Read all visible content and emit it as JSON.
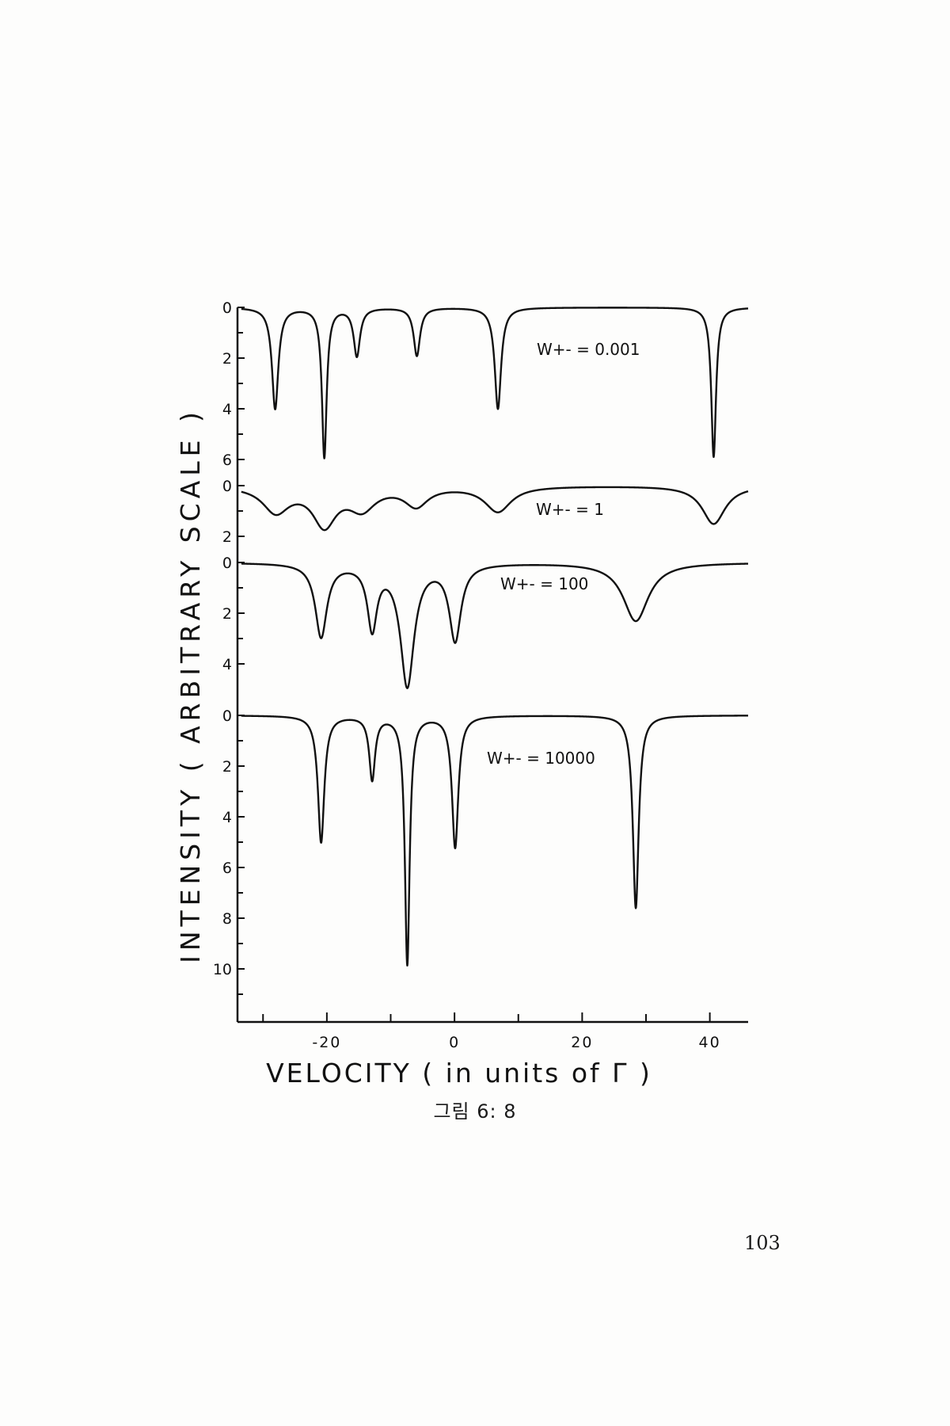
{
  "caption": "그림 6: 8",
  "page_number": "103",
  "chart_data": {
    "type": "line",
    "xlabel": "VELOCITY  ( in units of  Γ )",
    "ylabel": "INTENSITY ( ARBITRARY SCALE )",
    "xlim": [
      -34,
      46
    ],
    "x_ticks": [
      -20,
      0,
      20,
      40
    ],
    "grid": false,
    "axis_color": "#111111",
    "line_color": "#111111",
    "panels": [
      {
        "label": "W+- = 0.001",
        "y_ticks": [
          0,
          2,
          4,
          6
        ],
        "ylim": [
          0,
          6
        ],
        "series": {
          "baseline": 0,
          "peaks": [
            {
              "x": -28.1,
              "depth": 4.0,
              "width": 0.6
            },
            {
              "x": -20.4,
              "depth": 5.9,
              "width": 0.45
            },
            {
              "x": -15.3,
              "depth": 1.9,
              "width": 0.6
            },
            {
              "x": -5.9,
              "depth": 1.9,
              "width": 0.6
            },
            {
              "x": 6.8,
              "depth": 4.0,
              "width": 0.6
            },
            {
              "x": 40.6,
              "depth": 5.9,
              "width": 0.45
            }
          ]
        }
      },
      {
        "label": "W+- = 1",
        "y_ticks": [
          0,
          2
        ],
        "ylim": [
          0,
          2
        ],
        "series": {
          "baseline": 0,
          "peaks": [
            {
              "x": -28.0,
              "depth": 1.0,
              "width": 2.5
            },
            {
              "x": -20.4,
              "depth": 1.5,
              "width": 2.2
            },
            {
              "x": -14.5,
              "depth": 0.85,
              "width": 2.5
            },
            {
              "x": -6.0,
              "depth": 0.75,
              "width": 2.2
            },
            {
              "x": 6.8,
              "depth": 1.0,
              "width": 2.5
            },
            {
              "x": 40.6,
              "depth": 1.5,
              "width": 2.2
            }
          ]
        }
      },
      {
        "label": "W+- = 100",
        "y_ticks": [
          0,
          2,
          4
        ],
        "ylim": [
          0,
          6
        ],
        "series": {
          "baseline": 0,
          "peaks": [
            {
              "x": -20.9,
              "depth": 2.9,
              "width": 1.1
            },
            {
              "x": -12.9,
              "depth": 2.5,
              "width": 0.9
            },
            {
              "x": -7.4,
              "depth": 4.8,
              "width": 1.3
            },
            {
              "x": 0.1,
              "depth": 3.0,
              "width": 1.1
            },
            {
              "x": 28.4,
              "depth": 2.3,
              "width": 2.4
            }
          ]
        }
      },
      {
        "label": "W+- = 10000",
        "y_ticks": [
          0,
          2,
          4,
          6,
          8,
          10
        ],
        "ylim": [
          0,
          12
        ],
        "series": {
          "baseline": 0,
          "peaks": [
            {
              "x": -20.9,
              "depth": 5.0,
              "width": 0.6
            },
            {
              "x": -12.9,
              "depth": 2.5,
              "width": 0.55
            },
            {
              "x": -7.4,
              "depth": 9.8,
              "width": 0.45
            },
            {
              "x": 0.1,
              "depth": 5.2,
              "width": 0.6
            },
            {
              "x": 28.4,
              "depth": 7.6,
              "width": 0.55
            }
          ]
        }
      }
    ]
  }
}
